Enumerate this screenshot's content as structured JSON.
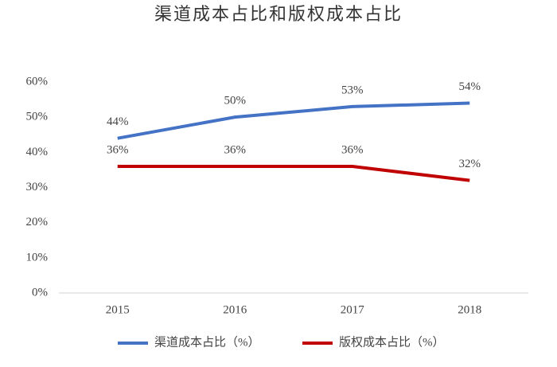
{
  "chart_data": {
    "type": "line",
    "title": "渠道成本占比和版权成本占比",
    "categories": [
      "2015",
      "2016",
      "2017",
      "2018"
    ],
    "series": [
      {
        "name": "渠道成本占比（%）",
        "color": "#4472c4",
        "values": [
          44,
          50,
          53,
          54
        ],
        "value_labels": [
          "44%",
          "50%",
          "53%",
          "54%"
        ]
      },
      {
        "name": "版权成本占比（%）",
        "color": "#c00000",
        "values": [
          36,
          36,
          36,
          32
        ],
        "value_labels": [
          "36%",
          "36%",
          "36%",
          "32%"
        ]
      }
    ],
    "ylim": [
      0,
      60
    ],
    "yticks": [
      {
        "value": 0,
        "label": "0%"
      },
      {
        "value": 10,
        "label": "10%"
      },
      {
        "value": 20,
        "label": "20%"
      },
      {
        "value": 30,
        "label": "30%"
      },
      {
        "value": 40,
        "label": "40%"
      },
      {
        "value": 50,
        "label": "50%"
      },
      {
        "value": 60,
        "label": "60%"
      }
    ],
    "grid": false,
    "legend": "bottom"
  }
}
